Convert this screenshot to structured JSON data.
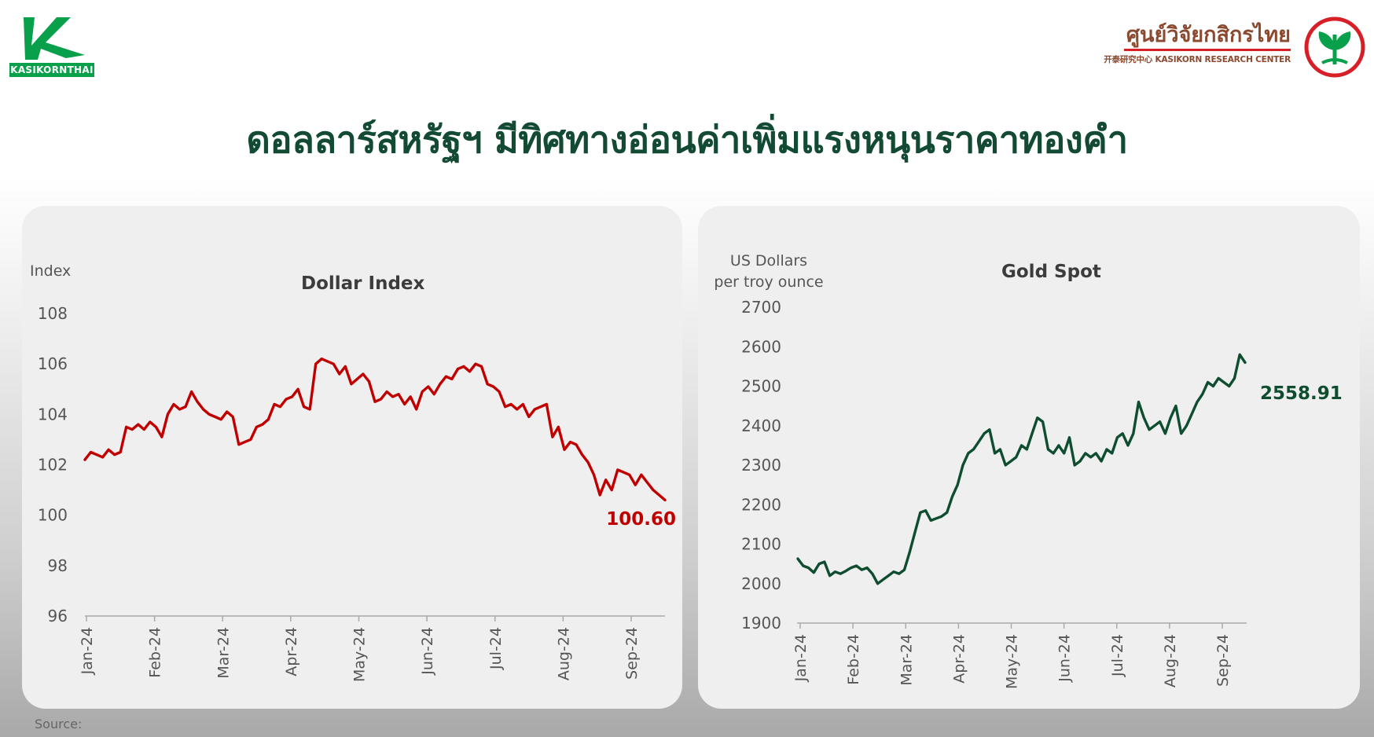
{
  "header": {
    "logo_left_text": "KASIKORNTHAI",
    "logo_right_thai": "ศูนย์วิจัยกสิกรไทย",
    "logo_right_en": "开泰研究中心 KASIKORN RESEARCH CENTER",
    "title": "ดอลลาร์สหรัฐฯ มีทิศทางอ่อนค่าเพิ่มแรงหนุนราคาทองคำ"
  },
  "footer": {
    "source_label": "Source:"
  },
  "colors": {
    "brand_green": "#134a33",
    "kbank_green": "#08a04a",
    "dollar_line": "#c00000",
    "gold_line": "#0f4d30",
    "krc_red": "#d61f26"
  },
  "icons": {
    "left_logo": "kasikornthai-logo-icon",
    "right_logo": "kbank-seal-icon"
  },
  "chart_data": [
    {
      "type": "line",
      "title": "Dollar Index",
      "ylabel": "Index",
      "xlabel": "",
      "ylim": [
        96,
        108
      ],
      "yticks": [
        "108",
        "106",
        "104",
        "102",
        "100",
        "98",
        "96"
      ],
      "xticks": [
        "Jan-24",
        "Feb-24",
        "Mar-24",
        "Apr-24",
        "May-24",
        "Jun-24",
        "Jul-24",
        "Aug-24",
        "Sep-24"
      ],
      "last_value_label": "100.60",
      "grid": false,
      "series": [
        {
          "color": "#c00000",
          "values": [
            102.2,
            102.5,
            102.4,
            102.3,
            102.6,
            102.4,
            102.5,
            103.5,
            103.4,
            103.6,
            103.4,
            103.7,
            103.5,
            103.1,
            104.0,
            104.4,
            104.2,
            104.3,
            104.9,
            104.5,
            104.2,
            104.0,
            103.9,
            103.8,
            104.1,
            103.9,
            102.8,
            102.9,
            103.0,
            103.5,
            103.6,
            103.8,
            104.4,
            104.3,
            104.6,
            104.7,
            105.0,
            104.3,
            104.2,
            106.0,
            106.2,
            106.1,
            106.0,
            105.6,
            105.9,
            105.2,
            105.4,
            105.6,
            105.3,
            104.5,
            104.6,
            104.9,
            104.7,
            104.8,
            104.4,
            104.7,
            104.2,
            104.9,
            105.1,
            104.8,
            105.2,
            105.5,
            105.4,
            105.8,
            105.9,
            105.7,
            106.0,
            105.9,
            105.2,
            105.1,
            104.9,
            104.3,
            104.4,
            104.2,
            104.4,
            103.9,
            104.2,
            104.3,
            104.4,
            103.1,
            103.5,
            102.6,
            102.9,
            102.8,
            102.4,
            102.1,
            101.6,
            100.8,
            101.4,
            101.0,
            101.8,
            101.7,
            101.6,
            101.2,
            101.6,
            101.3,
            101.0,
            100.8,
            100.6
          ]
        }
      ],
      "values_note": ""
    },
    {
      "type": "line",
      "title": "Gold Spot",
      "ylabel": "US Dollars per troy ounce",
      "ylabel_lines": [
        "US Dollars",
        "per troy ounce"
      ],
      "xlabel": "",
      "ylim": [
        1900,
        2700
      ],
      "yticks": [
        "2700",
        "2600",
        "2500",
        "2400",
        "2300",
        "2200",
        "2100",
        "2000",
        "1900"
      ],
      "xticks": [
        "Jan-24",
        "Feb-24",
        "Mar-24",
        "Apr-24",
        "May-24",
        "Jun-24",
        "Jul-24",
        "Aug-24",
        "Sep-24"
      ],
      "last_value_label": "2558.91",
      "grid": false,
      "series": [
        {
          "color": "#0f4d30",
          "values": [
            2063,
            2045,
            2040,
            2028,
            2050,
            2055,
            2020,
            2030,
            2025,
            2032,
            2040,
            2045,
            2035,
            2040,
            2025,
            2000,
            2010,
            2020,
            2030,
            2025,
            2035,
            2080,
            2130,
            2180,
            2185,
            2160,
            2165,
            2170,
            2180,
            2220,
            2250,
            2300,
            2330,
            2340,
            2360,
            2380,
            2390,
            2330,
            2340,
            2300,
            2310,
            2320,
            2350,
            2340,
            2380,
            2420,
            2410,
            2340,
            2330,
            2350,
            2330,
            2370,
            2300,
            2310,
            2330,
            2320,
            2330,
            2310,
            2340,
            2330,
            2370,
            2380,
            2350,
            2380,
            2460,
            2420,
            2390,
            2400,
            2410,
            2380,
            2420,
            2450,
            2380,
            2400,
            2430,
            2460,
            2480,
            2510,
            2500,
            2520,
            2510,
            2500,
            2520,
            2580,
            2560
          ]
        }
      ]
    }
  ]
}
